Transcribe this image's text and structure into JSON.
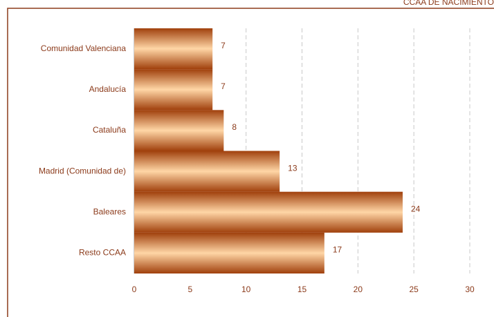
{
  "chart_data": {
    "type": "barh",
    "title": "CCAA DE NACIMIENTO",
    "categories": [
      "Comunidad Valenciana",
      "Andalucía",
      "Cataluña",
      "Madrid (Comunidad de)",
      "Baleares",
      "Resto CCAA"
    ],
    "values": [
      7,
      7,
      8,
      13,
      24,
      17
    ],
    "color": "#a0400c",
    "xlim": [
      0,
      30
    ],
    "xticks": [
      0,
      5,
      10,
      15,
      20,
      25,
      30
    ],
    "grid": true
  }
}
